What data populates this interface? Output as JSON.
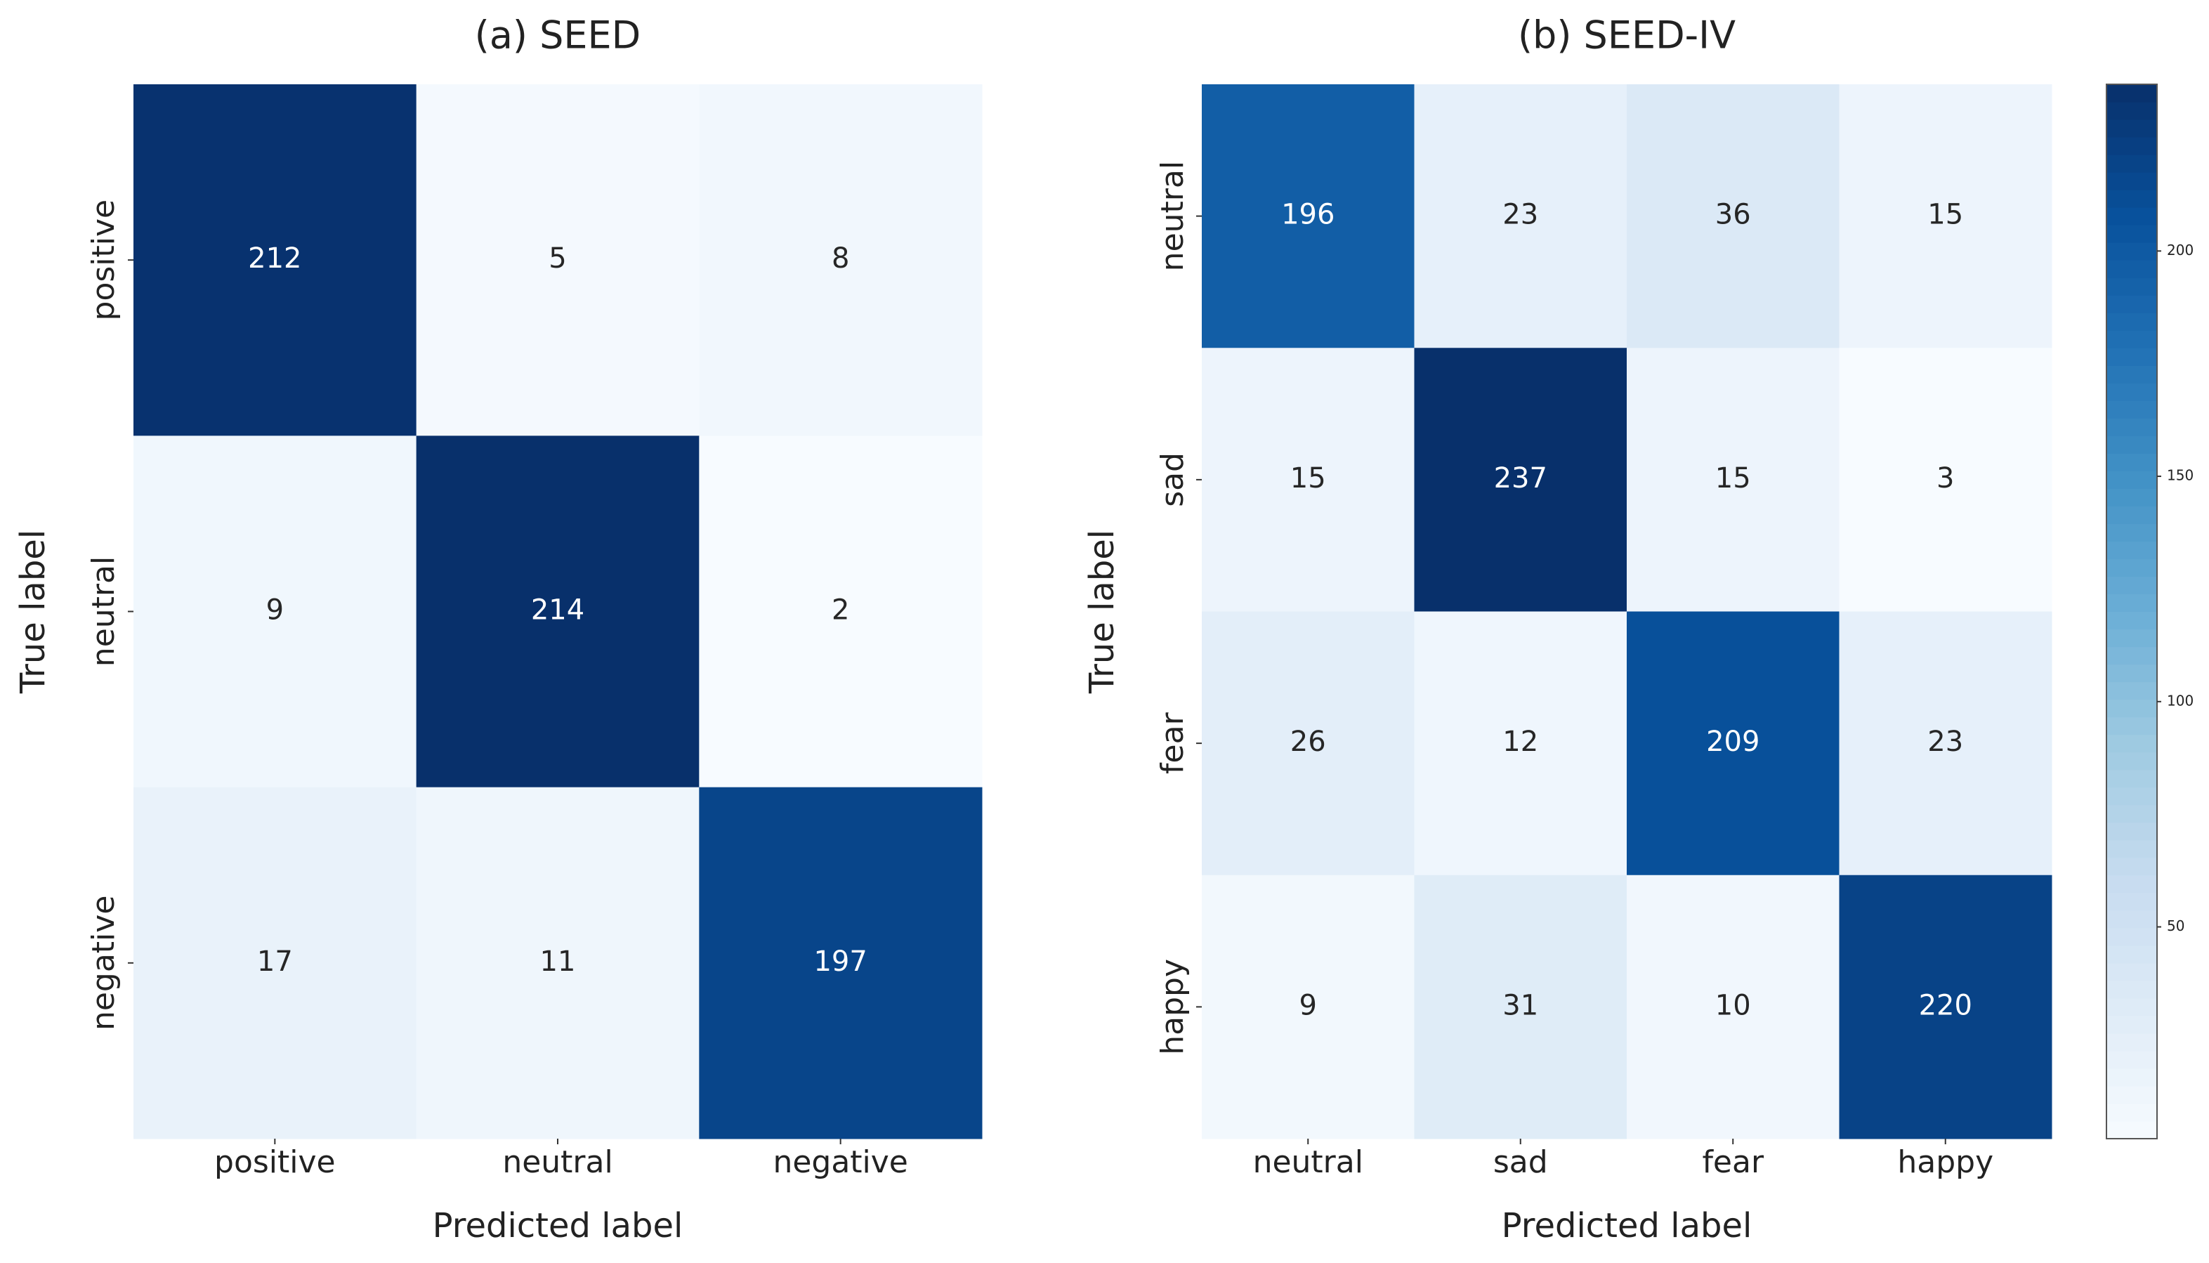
{
  "chart_data": [
    {
      "type": "heatmap",
      "title": "(a)  SEED",
      "xlabel": "Predicted label",
      "ylabel": "True label",
      "x_categories": [
        "positive",
        "neutral",
        "negative"
      ],
      "y_categories": [
        "positive",
        "neutral",
        "negative"
      ],
      "values": [
        [
          212,
          5,
          8
        ],
        [
          9,
          214,
          2
        ],
        [
          17,
          11,
          197
        ]
      ],
      "colormap": "Blues"
    },
    {
      "type": "heatmap",
      "title": "(b)  SEED-IV",
      "xlabel": "Predicted label",
      "ylabel": "True label",
      "x_categories": [
        "neutral",
        "sad",
        "fear",
        "happy"
      ],
      "y_categories": [
        "neutral",
        "sad",
        "fear",
        "happy"
      ],
      "values": [
        [
          196,
          23,
          36,
          15
        ],
        [
          15,
          237,
          15,
          3
        ],
        [
          26,
          12,
          209,
          23
        ],
        [
          9,
          31,
          10,
          220
        ]
      ],
      "colormap": "Blues",
      "zlim": [
        3,
        237
      ],
      "zticks": [
        50,
        100,
        150,
        200
      ]
    }
  ]
}
